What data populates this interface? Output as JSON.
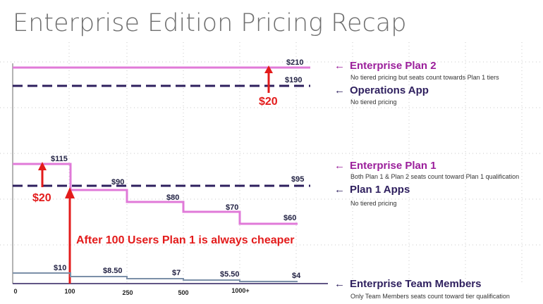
{
  "title": "Enterprise Edition Pricing Recap",
  "colors": {
    "pink": "#e07ad8",
    "dark_purple": "#2e1f5e",
    "magenta_text": "#9b1f9b",
    "steel": "#7b8fa8",
    "red": "#e31b1b",
    "grid": "#c8c8c8"
  },
  "chart_data": {
    "type": "line",
    "x_ticks": [
      "0",
      "100",
      "250",
      "500",
      "1000+"
    ],
    "series": [
      {
        "name": "Enterprise Plan 2",
        "style": "solid",
        "color": "#e07ad8",
        "note": "No tiered pricing but seats count towards Plan 1 tiers",
        "segments": [
          {
            "from": "0",
            "to": "1000+",
            "value": 210,
            "label": "$210"
          }
        ]
      },
      {
        "name": "Operations App",
        "style": "dashed",
        "color": "#2e1f5e",
        "note": "No tiered pricing",
        "segments": [
          {
            "from": "0",
            "to": "1000+",
            "value": 190,
            "label": "$190"
          }
        ]
      },
      {
        "name": "Enterprise Plan 1",
        "style": "solid",
        "color": "#e07ad8",
        "note": "Both Plan 1 & Plan 2 seats count toward Plan 1 qualification",
        "segments": [
          {
            "from": "0",
            "to": "100",
            "value": 115,
            "label": "$115"
          },
          {
            "from": "100",
            "to": "250",
            "value": 90,
            "label": "$90"
          },
          {
            "from": "250",
            "to": "500",
            "value": 80,
            "label": "$80"
          },
          {
            "from": "500",
            "to": "1000+",
            "value": 70,
            "label": "$70"
          },
          {
            "from": "1000+",
            "to": "1000+",
            "value": 60,
            "label": "$60"
          }
        ]
      },
      {
        "name": "Plan 1 Apps",
        "style": "dashed",
        "color": "#2e1f5e",
        "note": "No tiered pricing",
        "segments": [
          {
            "from": "0",
            "to": "1000+",
            "value": 95,
            "label": "$95"
          }
        ]
      },
      {
        "name": "Enterprise Team Members",
        "style": "solid",
        "color": "#7b8fa8",
        "note": "Only Team Members seats count toward tier qualification",
        "segments": [
          {
            "from": "0",
            "to": "100",
            "value": 10,
            "label": "$10"
          },
          {
            "from": "100",
            "to": "250",
            "value": 8.5,
            "label": "$8.50"
          },
          {
            "from": "250",
            "to": "500",
            "value": 7,
            "label": "$7"
          },
          {
            "from": "500",
            "to": "1000+",
            "value": 5.5,
            "label": "$5.50"
          },
          {
            "from": "1000+",
            "to": "1000+",
            "value": 4,
            "label": "$4"
          }
        ]
      }
    ],
    "annotations": [
      {
        "text": "$20",
        "between": [
          "Enterprise Plan 2",
          "Operations App"
        ]
      },
      {
        "text": "$20",
        "between": [
          "Enterprise Plan 1",
          "Plan 1 Apps"
        ]
      },
      {
        "text": "After 100 Users Plan 1 is always cheaper"
      }
    ],
    "grid": true
  }
}
